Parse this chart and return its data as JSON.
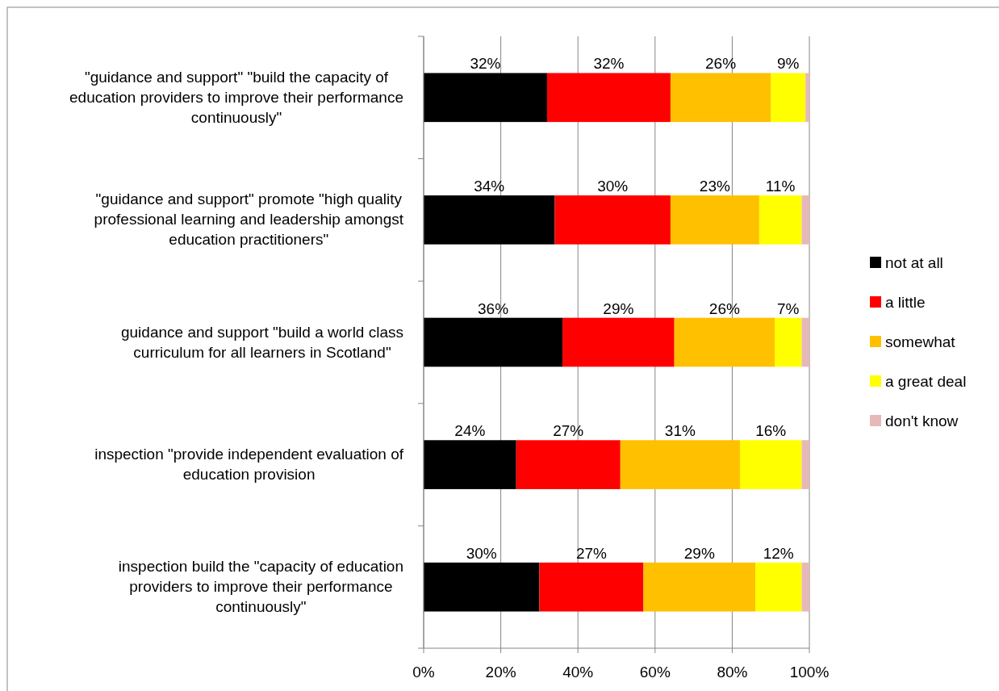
{
  "chart_data": {
    "type": "bar",
    "orientation": "horizontal",
    "stacked": true,
    "categories": [
      "\"guidance and support\" \"build the capacity of education providers to improve their performance continuously\"",
      "\"guidance and support\" promote \"high quality professional learning and leadership amongst education practitioners\"",
      "guidance and support \"build a world class curriculum for all learners in Scotland\"",
      "inspection \"provide independent evaluation of education provision",
      "inspection build the \"capacity of education providers to improve their performance continuously\""
    ],
    "series": [
      {
        "name": "not at all",
        "color": "#000000",
        "values": [
          32,
          34,
          36,
          24,
          30
        ],
        "value_labels": [
          "32%",
          "34%",
          "36%",
          "24%",
          "30%"
        ]
      },
      {
        "name": "a little",
        "color": "#ff0000",
        "values": [
          32,
          30,
          29,
          27,
          27
        ],
        "value_labels": [
          "32%",
          "30%",
          "29%",
          "27%",
          "27%"
        ]
      },
      {
        "name": "somewhat",
        "color": "#ffc000",
        "values": [
          26,
          23,
          26,
          31,
          29
        ],
        "value_labels": [
          "26%",
          "23%",
          "26%",
          "31%",
          "29%"
        ]
      },
      {
        "name": "a great deal",
        "color": "#ffff00",
        "values": [
          9,
          11,
          7,
          16,
          12
        ],
        "value_labels": [
          "9%",
          "11%",
          "7%",
          "16%",
          "12%"
        ]
      },
      {
        "name": "don't know",
        "color": "#e6b9b8",
        "values": [
          1,
          2,
          2,
          2,
          2
        ],
        "value_labels": [
          null,
          null,
          null,
          null,
          null
        ]
      }
    ],
    "xlim": [
      0,
      100
    ],
    "xticks": [
      {
        "value": 0,
        "label": "0%"
      },
      {
        "value": 20,
        "label": "20%"
      },
      {
        "value": 40,
        "label": "40%"
      },
      {
        "value": 60,
        "label": "60%"
      },
      {
        "value": 80,
        "label": "80%"
      },
      {
        "value": 100,
        "label": "100%"
      }
    ],
    "grid": "x",
    "legend": "right"
  }
}
